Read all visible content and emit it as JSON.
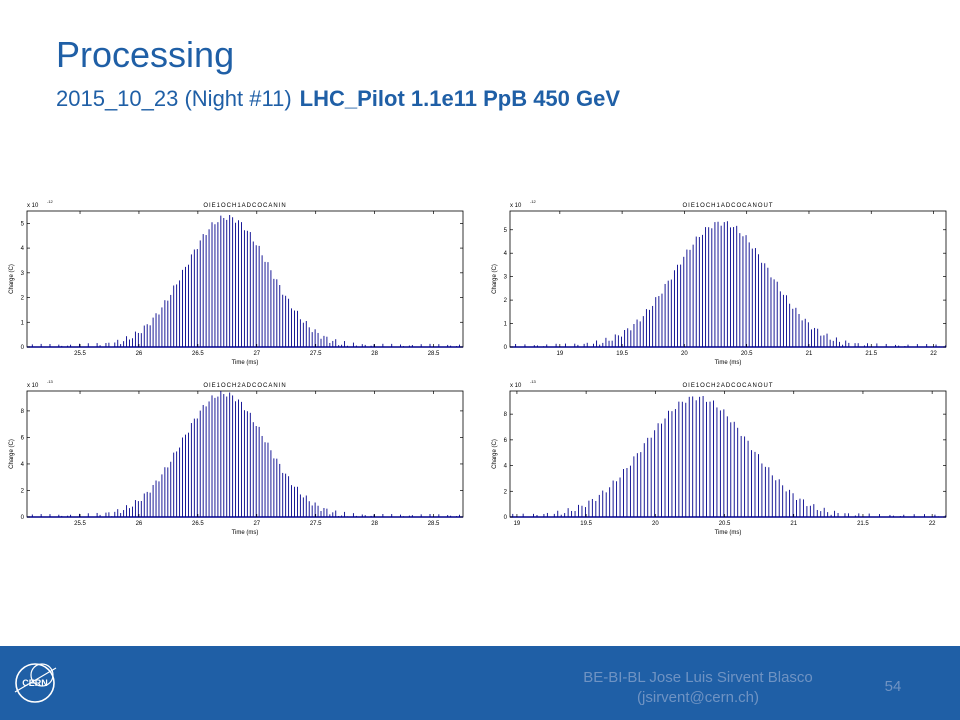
{
  "slide": {
    "title": "Processing",
    "subtitle_plain": "2015_10_23 (Night #11)",
    "subtitle_bold": "LHC_Pilot 1.1e11 PpB  450 GeV"
  },
  "footer": {
    "line1": "BE-BI-BL Jose Luis Sirvent Blasco",
    "line2": "(jsirvent@cern.ch)",
    "page_number": "54",
    "logo_text": "CERN"
  },
  "colors": {
    "accent": "#1f5fa6",
    "footer_text": "#6f93c3",
    "bars": "#00008b"
  },
  "chart_data": [
    {
      "type": "bar",
      "title": "OIE1OCH1ADCOCANIN",
      "xlabel": "Time (ms)",
      "ylabel": "Charge (C)",
      "exponent_label": "x 10",
      "exponent_power": "-12",
      "xlim": [
        25.05,
        28.75
      ],
      "ylim": [
        0,
        5.5
      ],
      "xticks": [
        25.5,
        26,
        26.5,
        27,
        27.5,
        28,
        28.5
      ],
      "yticks": [
        0,
        1,
        2,
        3,
        4,
        5
      ],
      "peak": {
        "center": 26.75,
        "sigma": 0.36,
        "amplitude": 5.25,
        "spacing": 0.025
      }
    },
    {
      "type": "bar",
      "title": "OIE1OCH1ADCOCANOUT",
      "xlabel": "Time (ms)",
      "ylabel": "Charge (C)",
      "exponent_label": "x 10",
      "exponent_power": "-12",
      "xlim": [
        18.6,
        22.1
      ],
      "ylim": [
        0,
        5.8
      ],
      "xticks": [
        19,
        19.5,
        20,
        20.5,
        21,
        21.5,
        22
      ],
      "yticks": [
        0,
        1,
        2,
        3,
        4,
        5
      ],
      "peak": {
        "center": 20.3,
        "sigma": 0.38,
        "amplitude": 5.3,
        "spacing": 0.025
      }
    },
    {
      "type": "bar",
      "title": "OIE1OCH2ADCOCANIN",
      "xlabel": "Time (ms)",
      "ylabel": "Charge (C)",
      "exponent_label": "x 10",
      "exponent_power": "-13",
      "xlim": [
        25.05,
        28.75
      ],
      "ylim": [
        0,
        9.5
      ],
      "xticks": [
        25.5,
        26,
        26.5,
        27,
        27.5,
        28,
        28.5
      ],
      "yticks": [
        0,
        2,
        4,
        6,
        8
      ],
      "peak": {
        "center": 26.72,
        "sigma": 0.36,
        "amplitude": 9.3,
        "spacing": 0.025
      }
    },
    {
      "type": "bar",
      "title": "OIE1OCH2ADCOCANOUT",
      "xlabel": "Time (ms)",
      "ylabel": "Charge (C)",
      "exponent_label": "x 10",
      "exponent_power": "-13",
      "xlim": [
        18.95,
        22.1
      ],
      "ylim": [
        0,
        9.8
      ],
      "xticks": [
        19,
        19.5,
        20,
        20.5,
        21,
        21.5,
        22
      ],
      "yticks": [
        0,
        2,
        4,
        6,
        8
      ],
      "peak": {
        "center": 20.3,
        "sigma": 0.38,
        "amplitude": 9.3,
        "spacing": 0.025
      }
    }
  ]
}
